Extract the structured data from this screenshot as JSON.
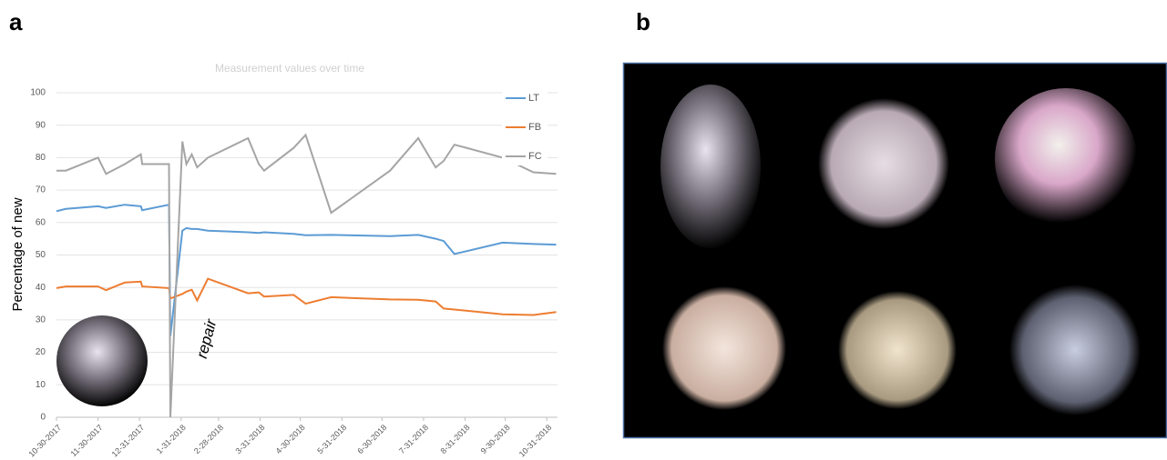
{
  "panel_a_label": "a",
  "panel_b_label": "b",
  "annotation": "repair",
  "chart_data": {
    "type": "line",
    "title": "Measurement values over time",
    "y_label": "Percentage of new",
    "x": [
      "2017-10-30",
      "2017-11-06",
      "2017-11-30",
      "2017-12-06",
      "2017-12-20",
      "2018-01-01",
      "2018-01-02",
      "2018-01-22",
      "2018-01-23",
      "2018-02-01",
      "2018-02-04",
      "2018-02-08",
      "2018-02-12",
      "2018-02-20",
      "2018-03-22",
      "2018-03-30",
      "2018-04-03",
      "2018-04-25",
      "2018-05-04",
      "2018-05-23",
      "2018-07-06",
      "2018-07-27",
      "2018-08-09",
      "2018-08-15",
      "2018-08-23",
      "2018-09-28",
      "2018-10-21",
      "2018-11-07"
    ],
    "series": [
      {
        "name": "LT",
        "color": "#5b9bd5",
        "values": [
          63.5,
          64.2,
          65,
          64.5,
          65.5,
          65,
          63.8,
          65.5,
          25,
          57.5,
          58.3,
          58,
          58,
          57.5,
          57,
          56.8,
          57,
          56.5,
          56.1,
          56.2,
          55.8,
          56.2,
          55,
          54.3,
          50.3,
          53.8,
          53.4,
          53.2
        ]
      },
      {
        "name": "FB",
        "color": "#ed7d31",
        "values": [
          39.8,
          40.3,
          40.3,
          39.2,
          41.5,
          41.8,
          40.3,
          39.8,
          36.6,
          38,
          38.7,
          39.3,
          36,
          42.7,
          38.2,
          38.5,
          37.2,
          37.7,
          35,
          37,
          36.3,
          36.2,
          35.7,
          33.5,
          33.2,
          31.7,
          31.5,
          32.4
        ]
      },
      {
        "name": "FC",
        "color": "#a5a5a5",
        "values": [
          76,
          76,
          80,
          75,
          78,
          81,
          78,
          78,
          0,
          85,
          78,
          81,
          77,
          80,
          86,
          78,
          76,
          83,
          87,
          63,
          76,
          86,
          77,
          79,
          84,
          80,
          75.5,
          75
        ]
      }
    ],
    "xlim": [
      "2017-10-30",
      "2018-11-08"
    ],
    "xticks": [
      {
        "value": "2017-10-30",
        "label": "10-30-2017"
      },
      {
        "value": "2017-11-30",
        "label": "11-30-2017"
      },
      {
        "value": "2017-12-31",
        "label": "12-31-2017"
      },
      {
        "value": "2018-01-31",
        "label": "1-31-2018"
      },
      {
        "value": "2018-02-28",
        "label": "2-28-2018"
      },
      {
        "value": "2018-03-31",
        "label": "3-31-2018"
      },
      {
        "value": "2018-04-30",
        "label": "4-30-2018"
      },
      {
        "value": "2018-05-31",
        "label": "5-31-2018"
      },
      {
        "value": "2018-06-30",
        "label": "6-30-2018"
      },
      {
        "value": "2018-07-31",
        "label": "7-31-2018"
      },
      {
        "value": "2018-08-31",
        "label": "8-31-2018"
      },
      {
        "value": "2018-09-30",
        "label": "9-30-2018"
      },
      {
        "value": "2018-10-31",
        "label": "10-31-2018"
      }
    ],
    "ylim": [
      0,
      100
    ],
    "yticks": [
      0,
      10,
      20,
      30,
      40,
      50,
      60,
      70,
      80,
      90,
      100
    ],
    "grid": true,
    "legend": "upper right"
  }
}
